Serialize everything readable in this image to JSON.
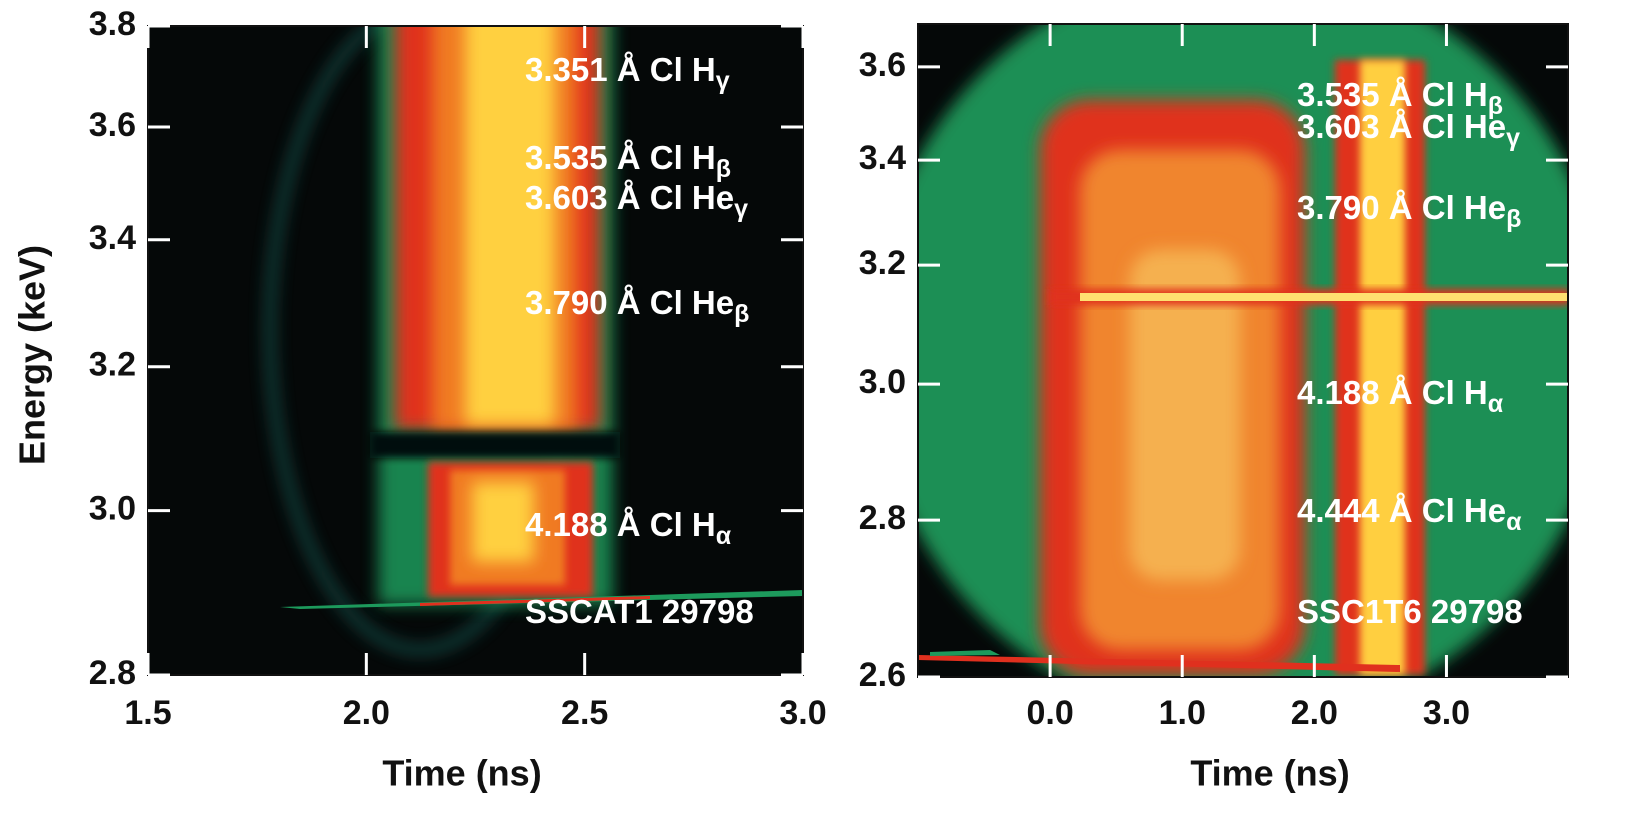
{
  "chart_data": [
    {
      "type": "image",
      "xlabel": "Time (ns)",
      "ylabel": "Energy (keV)",
      "xlim": [
        1.5,
        3.0
      ],
      "xticks": [
        1.5,
        {
          "value": 2,
          "label": "2.0"
        },
        2.5,
        {
          "value": 3,
          "label": "3.0"
        }
      ],
      "ylim": [
        2.8,
        3.8
      ],
      "yscale": "reciprocal",
      "yticks": [
        2.8,
        {
          "value": 3,
          "label": "3.0"
        },
        3.2,
        3.4,
        3.6,
        3.8
      ],
      "annotations": [
        {
          "text": "3.351 Å Cl H",
          "subscript": "γ"
        },
        {
          "text": "3.535 Å Cl H",
          "subscript": "β"
        },
        {
          "text": "3.603 Å Cl He",
          "subscript": "γ"
        },
        {
          "text": "3.790 Å Cl He",
          "subscript": "β"
        },
        {
          "text": "4.188 Å Cl H",
          "subscript": "α"
        },
        {
          "text": "SSCAT1 29798"
        }
      ]
    },
    {
      "type": "image",
      "xlabel": "Time (ns)",
      "xlim": [
        -1.0,
        3.92
      ],
      "xticks": [
        {
          "value": 0,
          "label": "0.0"
        },
        {
          "value": 1,
          "label": "1.0"
        },
        {
          "value": 2,
          "label": "2.0"
        },
        {
          "value": 3,
          "label": "3.0"
        }
      ],
      "ylim": [
        2.6,
        3.7
      ],
      "yscale": "reciprocal",
      "yticks": [
        2.6,
        2.8,
        {
          "value": 3,
          "label": "3.0"
        },
        3.2,
        3.4,
        3.6
      ],
      "annotations": [
        {
          "text": "3.535 Å Cl H",
          "subscript": "β"
        },
        {
          "text": "3.603 Å Cl He",
          "subscript": "γ"
        },
        {
          "text": "3.790 Å Cl He",
          "subscript": "β"
        },
        {
          "text": "4.188 Å Cl H",
          "subscript": "α"
        },
        {
          "text": "4.444 Å Cl He",
          "subscript": "α"
        },
        {
          "text": "SSC1T6 29798"
        }
      ]
    }
  ]
}
